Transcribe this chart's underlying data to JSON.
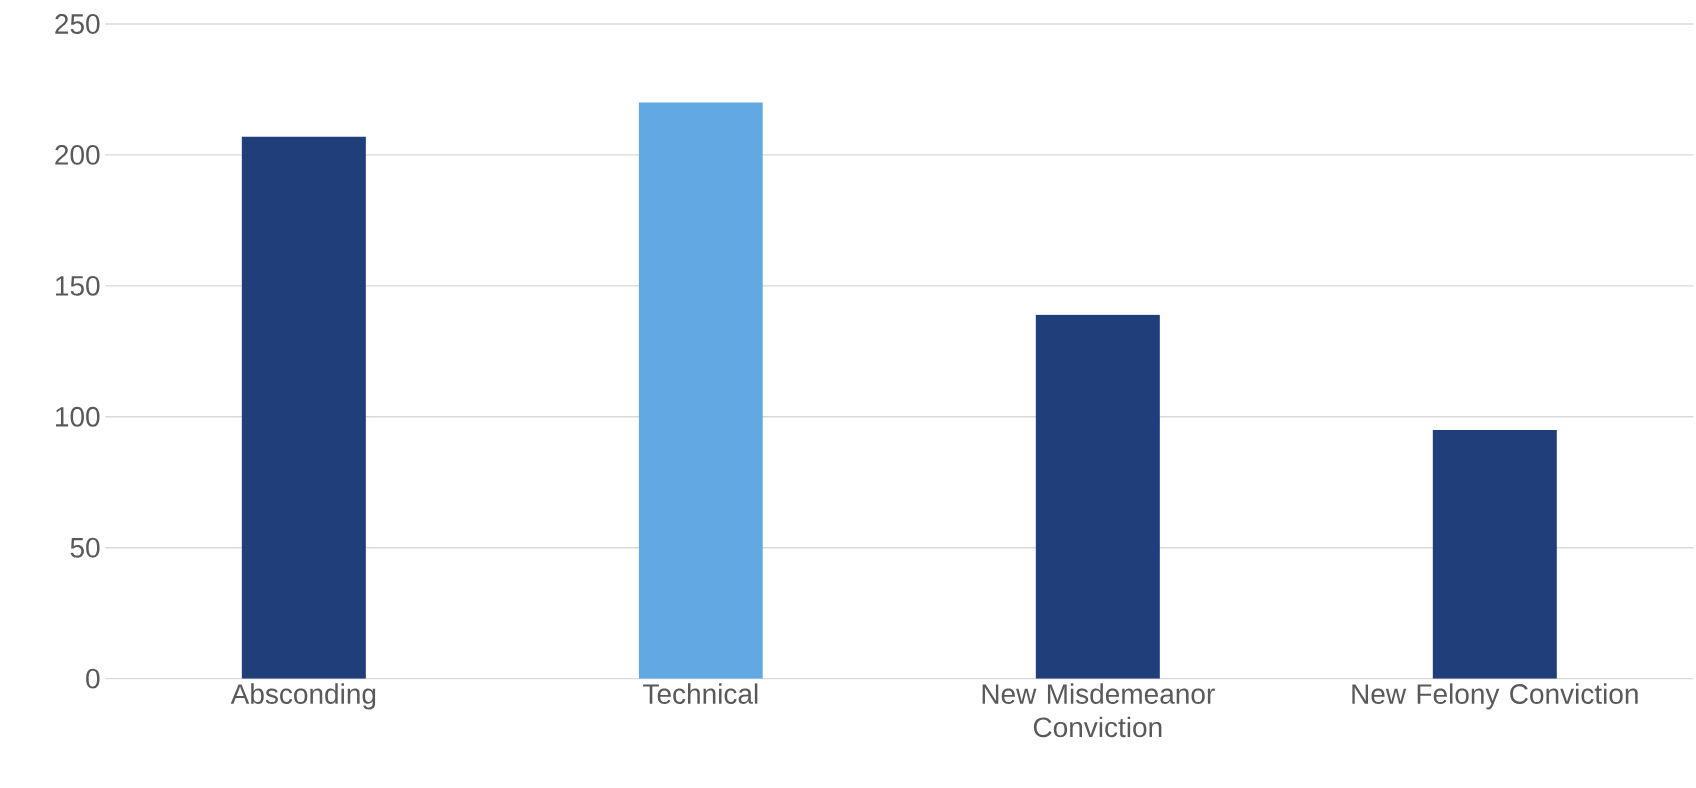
{
  "chart_data": {
    "type": "bar",
    "categories": [
      "Absconding",
      "Technical",
      "New Misdemeanor Conviction",
      "New Felony Conviction"
    ],
    "values": [
      207,
      220,
      139,
      95
    ],
    "colors": [
      "#203f7a",
      "#62a9e3",
      "#203f7a",
      "#203f7a"
    ],
    "ylim": [
      0,
      250
    ],
    "yticks": [
      0,
      50,
      100,
      150,
      200,
      250
    ],
    "grid": "y"
  }
}
